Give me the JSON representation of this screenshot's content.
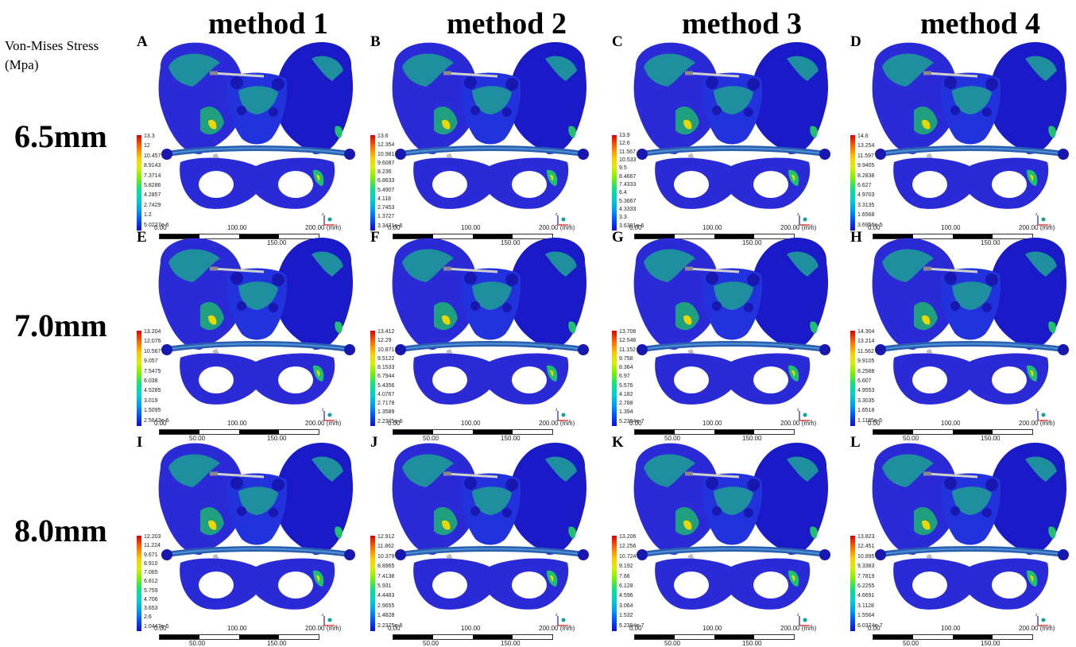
{
  "stress_title_line1": "Von-Mises Stress",
  "stress_title_line2": "(Mpa)",
  "columns": [
    "method 1",
    "method 2",
    "method 3",
    "method 4"
  ],
  "rows": [
    "6.5mm",
    "7.0mm",
    "8.0mm"
  ],
  "scale": {
    "t0": "0.00",
    "t100": "100.00",
    "t200": "200.00 (mm)",
    "t50": "50.00",
    "t150": "150.00"
  },
  "panels": [
    {
      "letter": "A",
      "legend": [
        "13.3",
        "12",
        "10.457",
        "8.9143",
        "7.3714",
        "5.8286",
        "4.2857",
        "2.7429",
        "1.2",
        "5.0227e-6"
      ]
    },
    {
      "letter": "B",
      "legend": [
        "13.6",
        "12.354",
        "10.981",
        "9.6087",
        "8.236",
        "6.8633",
        "5.4907",
        "4.118",
        "2.7453",
        "1.3727",
        "3.3471e-6"
      ]
    },
    {
      "letter": "C",
      "legend": [
        "13.9",
        "12.6",
        "11.567",
        "10.533",
        "9.5",
        "8.4667",
        "7.4333",
        "6.4",
        "5.3667",
        "4.3333",
        "3.3",
        "3.6301e-6"
      ]
    },
    {
      "letter": "D",
      "legend": [
        "14.6",
        "13.254",
        "11.597",
        "9.9405",
        "8.2838",
        "6.627",
        "4.9703",
        "3.3135",
        "1.6568",
        "3.6956e-5"
      ]
    },
    {
      "letter": "E",
      "legend": [
        "13.204",
        "12.076",
        "10.567",
        "9.057",
        "7.5475",
        "6.038",
        "4.5285",
        "3.019",
        "1.5095",
        "2.5642e-6"
      ]
    },
    {
      "letter": "F",
      "legend": [
        "13.412",
        "12.29",
        "10.871",
        "9.5122",
        "8.1533",
        "6.7944",
        "5.4356",
        "4.0767",
        "2.7178",
        "1.3589",
        "2.2375e-6"
      ]
    },
    {
      "letter": "G",
      "legend": [
        "13.706",
        "12.546",
        "11.152",
        "9.758",
        "8.364",
        "6.97",
        "5.576",
        "4.182",
        "2.788",
        "1.394",
        "5.2394e-7"
      ]
    },
    {
      "letter": "H",
      "legend": [
        "14.304",
        "13.214",
        "11.562",
        "9.9105",
        "8.2588",
        "6.607",
        "4.9553",
        "3.3035",
        "1.6518",
        "1.1185e-5"
      ]
    },
    {
      "letter": "I",
      "legend": [
        "12.203",
        "11.224",
        "9.671",
        "8.910",
        "7.065",
        "6.812",
        "5.759",
        "4.706",
        "3.653",
        "2.6",
        "1.0447e-5"
      ]
    },
    {
      "letter": "J",
      "legend": [
        "12.912",
        "11.862",
        "10.379",
        "8.8965",
        "7.4138",
        "5.931",
        "4.4483",
        "2.9655",
        "1.4828",
        "2.2375e-6"
      ]
    },
    {
      "letter": "K",
      "legend": [
        "13.206",
        "12.256",
        "10.724",
        "9.192",
        "7.66",
        "6.128",
        "4.596",
        "3.064",
        "1.532",
        "5.2394e-7"
      ]
    },
    {
      "letter": "L",
      "legend": [
        "13.823",
        "12.451",
        "10.895",
        "9.3383",
        "7.7819",
        "6.2255",
        "4.6691",
        "3.1128",
        "1.5564",
        "6.0374e-7"
      ]
    }
  ],
  "colors": {
    "bone_dark": "#1a1ac8",
    "bone_mid": "#2233dd",
    "stress_teal": "#1f8fa0",
    "stress_green": "#20c070",
    "stress_yellow": "#e8d800",
    "stress_red": "#e02000"
  }
}
